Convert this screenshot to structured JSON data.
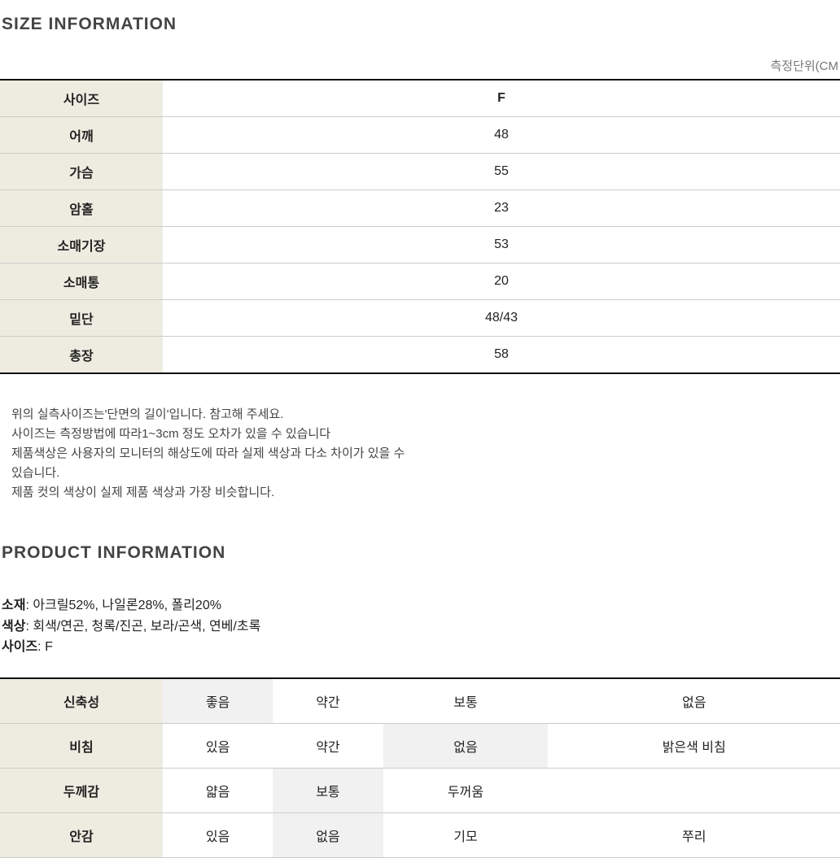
{
  "sizeSection": {
    "title": "SIZE INFORMATION",
    "unitLabel": "측정단위(CM",
    "rows": [
      {
        "label": "사이즈",
        "value": "F",
        "isHeader": true
      },
      {
        "label": "어깨",
        "value": "48"
      },
      {
        "label": "가슴",
        "value": "55"
      },
      {
        "label": "암홀",
        "value": "23"
      },
      {
        "label": "소매기장",
        "value": "53"
      },
      {
        "label": "소매통",
        "value": "20"
      },
      {
        "label": "밑단",
        "value": "48/43"
      },
      {
        "label": "총장",
        "value": "58"
      }
    ],
    "notes": [
      "위의 실측사이즈는'단면의 길이'입니다. 참고해 주세요.",
      "사이즈는 측정방법에 따라1~3cm 정도 오차가 있을 수 있습니다",
      "제품색상은 사용자의 모니터의 해상도에 따라 실제 색상과 다소 차이가 있을 수",
      "있습니다.",
      "제품 컷의 색상이 실제 제품 색상과 가장 비슷합니다."
    ]
  },
  "productSection": {
    "title": "PRODUCT INFORMATION",
    "details": [
      {
        "label": "소재",
        "value": ": 아크릴52%, 나일론28%, 폴리20%"
      },
      {
        "label": "색상",
        "value": ": 회색/연곤, 청록/진곤, 보라/곤색, 연베/초록"
      },
      {
        "label": "사이즈",
        "value": ": F"
      }
    ],
    "attributes": [
      {
        "label": "신축성",
        "options": [
          "좋음",
          "약간",
          "보통",
          "없음"
        ],
        "selectedIndex": 0
      },
      {
        "label": "비침",
        "options": [
          "있음",
          "약간",
          "없음",
          "밝은색 비침"
        ],
        "selectedIndex": 2
      },
      {
        "label": "두께감",
        "options": [
          "얇음",
          "보통",
          "두꺼움",
          ""
        ],
        "selectedIndex": 1
      },
      {
        "label": "안감",
        "options": [
          "있음",
          "없음",
          "기모",
          "쭈리"
        ],
        "selectedIndex": 1
      }
    ]
  },
  "colors": {
    "labelBg": "#eeece1",
    "selectedBg": "#f1f1f1",
    "borderDark": "#111111",
    "borderLight": "#cccccc",
    "text": "#222222",
    "titleText": "#444444",
    "muted": "#777777"
  }
}
